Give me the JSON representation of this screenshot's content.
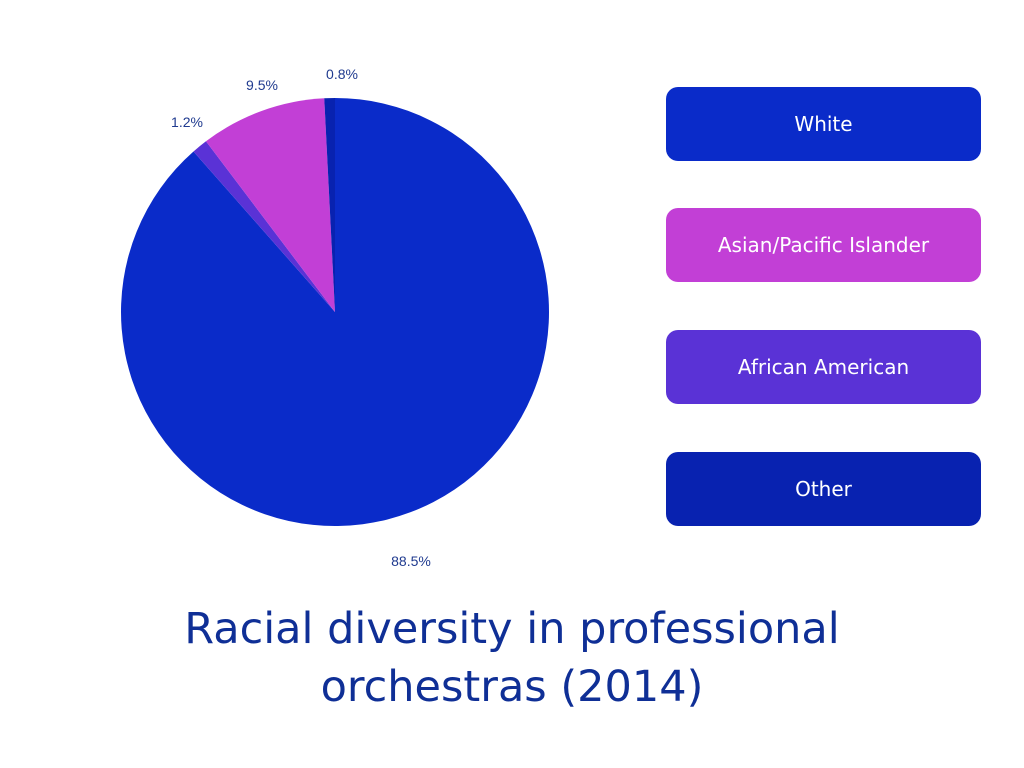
{
  "chart_data": {
    "type": "pie",
    "title": "Racial diversity in professional orchestras (2014)",
    "slices": [
      {
        "name": "White",
        "value": 88.5,
        "label": "88.5%",
        "color": "#0a2bc9"
      },
      {
        "name": "African American",
        "value": 1.2,
        "label": "1.2%",
        "color": "#5a32d6"
      },
      {
        "name": "Asian/Pacific Islander",
        "value": 9.5,
        "label": "9.5%",
        "color": "#c23fd6"
      },
      {
        "name": "Other",
        "value": 0.8,
        "label": "0.8%",
        "color": "#0822b0"
      }
    ],
    "legend_placement": "right",
    "legend": [
      {
        "label": "White",
        "color": "#0a2bc9"
      },
      {
        "label": "Asian/Pacific Islander",
        "color": "#c23fd6"
      },
      {
        "label": "African American",
        "color": "#5a32d6"
      },
      {
        "label": "Other",
        "color": "#0822b0"
      }
    ]
  }
}
